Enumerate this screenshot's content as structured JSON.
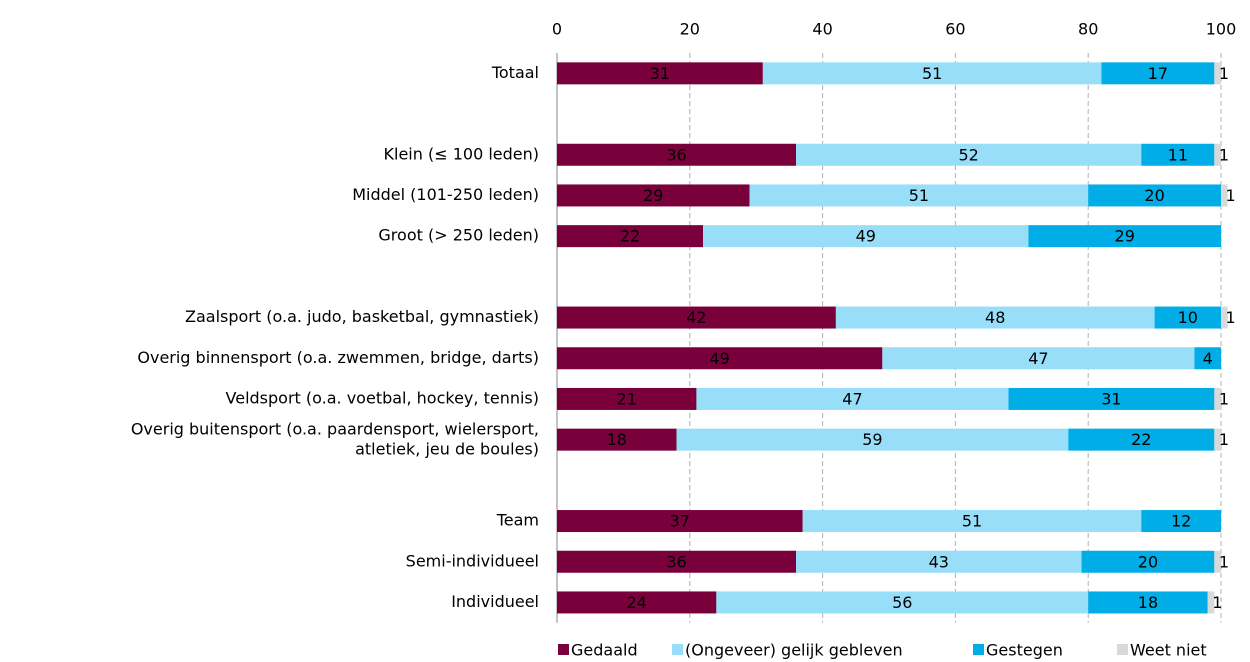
{
  "chart_data": {
    "type": "stacked-barh",
    "categories": [
      "Totaal",
      null,
      "Klein (≤ 100 leden)",
      "Middel (101-250 leden)",
      "Groot (> 250 leden)",
      null,
      "Zaalsport (o.a. judo, basketbal, gymnastiek)",
      "Overig binnensport (o.a. zwemmen, bridge, darts)",
      "Veldsport (o.a. voetbal, hockey, tennis)",
      "Overig buitensport (o.a. paardensport, wielersport,\natletiek, jeu de boules)",
      null,
      "Team",
      "Semi-individueel",
      "Individueel"
    ],
    "series": [
      {
        "name": "Gedaald",
        "color": "#7a003c",
        "values": [
          31,
          null,
          36,
          29,
          22,
          null,
          42,
          49,
          21,
          18,
          null,
          37,
          36,
          24
        ]
      },
      {
        "name": "(Ongeveer) gelijk gebleven",
        "color": "#99def9",
        "values": [
          51,
          null,
          52,
          51,
          49,
          null,
          48,
          47,
          47,
          59,
          null,
          51,
          43,
          56
        ]
      },
      {
        "name": "Gestegen",
        "color": "#00ade6",
        "values": [
          17,
          null,
          11,
          20,
          29,
          null,
          10,
          4,
          31,
          22,
          null,
          12,
          20,
          18
        ]
      },
      {
        "name": "Weet niet",
        "color": "#d9d9d9",
        "values": [
          1,
          null,
          1,
          1,
          null,
          null,
          1,
          null,
          1,
          1,
          null,
          null,
          1,
          1
        ]
      }
    ],
    "xlim": [
      0,
      100
    ],
    "xticks": [
      0,
      20,
      40,
      60,
      80,
      100
    ],
    "grid": true,
    "legend": "bottom"
  }
}
